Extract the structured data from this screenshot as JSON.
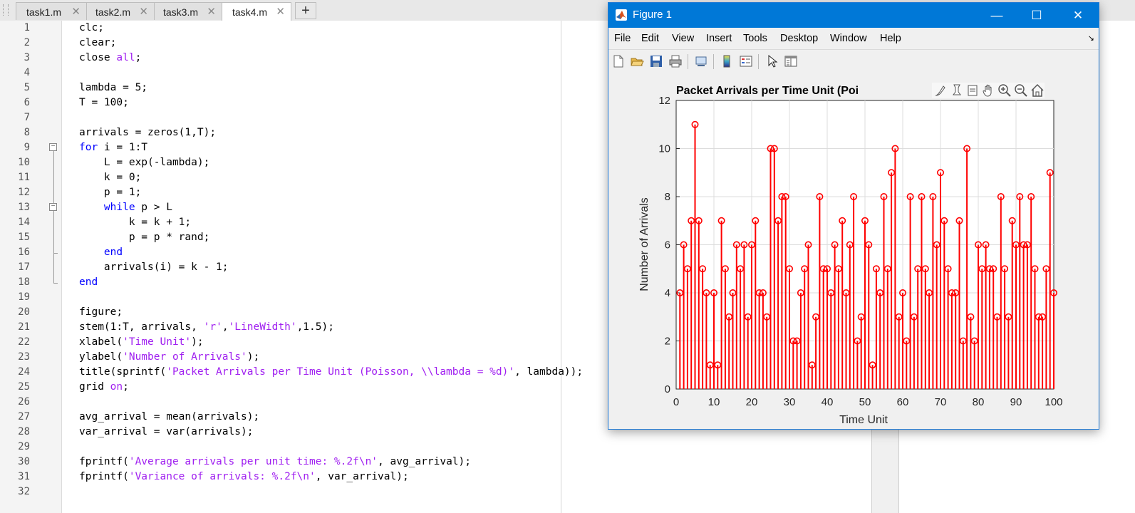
{
  "editor": {
    "tabs": [
      {
        "label": "task1.m",
        "active": false
      },
      {
        "label": "task2.m",
        "active": false
      },
      {
        "label": "task3.m",
        "active": false
      },
      {
        "label": "task4.m",
        "active": true
      }
    ],
    "new_tab": "+",
    "lines": [
      [
        [
          "t",
          "clc;"
        ]
      ],
      [
        [
          "t",
          "clear;"
        ]
      ],
      [
        [
          "t",
          "close "
        ],
        [
          "s",
          "all"
        ],
        [
          "t",
          ";"
        ]
      ],
      [
        [
          "t",
          ""
        ]
      ],
      [
        [
          "t",
          "lambda = 5;"
        ]
      ],
      [
        [
          "t",
          "T = 100;"
        ]
      ],
      [
        [
          "t",
          ""
        ]
      ],
      [
        [
          "t",
          "arrivals = zeros(1,T);"
        ]
      ],
      [
        [
          "k",
          "for"
        ],
        [
          "t",
          " i = 1:T"
        ]
      ],
      [
        [
          "t",
          "    L = exp(-lambda);"
        ]
      ],
      [
        [
          "t",
          "    k = 0;"
        ]
      ],
      [
        [
          "t",
          "    p = 1;"
        ]
      ],
      [
        [
          "t",
          "    "
        ],
        [
          "k",
          "while"
        ],
        [
          "t",
          " p > L"
        ]
      ],
      [
        [
          "t",
          "        k = k + 1;"
        ]
      ],
      [
        [
          "t",
          "        p = p * rand;"
        ]
      ],
      [
        [
          "t",
          "    "
        ],
        [
          "k",
          "end"
        ]
      ],
      [
        [
          "t",
          "    arrivals(i) = k - 1;"
        ]
      ],
      [
        [
          "k",
          "end"
        ]
      ],
      [
        [
          "t",
          ""
        ]
      ],
      [
        [
          "t",
          "figure;"
        ]
      ],
      [
        [
          "t",
          "stem(1:T, arrivals, "
        ],
        [
          "s",
          "'r'"
        ],
        [
          "t",
          ","
        ],
        [
          "s",
          "'LineWidth'"
        ],
        [
          "t",
          ",1.5);"
        ]
      ],
      [
        [
          "t",
          "xlabel("
        ],
        [
          "s",
          "'Time Unit'"
        ],
        [
          "t",
          ");"
        ]
      ],
      [
        [
          "t",
          "ylabel("
        ],
        [
          "s",
          "'Number of Arrivals'"
        ],
        [
          "t",
          ");"
        ]
      ],
      [
        [
          "t",
          "title(sprintf("
        ],
        [
          "s",
          "'Packet Arrivals per Time Unit (Poisson, \\\\lambda = %d)'"
        ],
        [
          "t",
          ", lambda));"
        ]
      ],
      [
        [
          "t",
          "grid "
        ],
        [
          "s",
          "on"
        ],
        [
          "t",
          ";"
        ]
      ],
      [
        [
          "t",
          ""
        ]
      ],
      [
        [
          "t",
          "avg_arrival = mean(arrivals);"
        ]
      ],
      [
        [
          "t",
          "var_arrival = var(arrivals);"
        ]
      ],
      [
        [
          "t",
          ""
        ]
      ],
      [
        [
          "t",
          "fprintf("
        ],
        [
          "s",
          "'Average arrivals per unit time: %.2f\\n'"
        ],
        [
          "t",
          ", avg_arrival);"
        ]
      ],
      [
        [
          "t",
          "fprintf("
        ],
        [
          "s",
          "'Variance of arrivals: %.2f\\n'"
        ],
        [
          "t",
          ", var_arrival);"
        ]
      ],
      [
        [
          "t",
          ""
        ]
      ]
    ]
  },
  "figure_window": {
    "title": "Figure 1",
    "controls": {
      "minimize": "—",
      "maximize": "☐",
      "close": "✕"
    },
    "menu": [
      "File",
      "Edit",
      "View",
      "Insert",
      "Tools",
      "Desktop",
      "Window",
      "Help"
    ],
    "toolbar_icons": [
      "new-figure-icon",
      "open-file-icon",
      "save-icon",
      "print-icon",
      "link-plot-icon",
      "colorbar-icon",
      "legend-icon",
      "pointer-icon",
      "property-inspector-icon"
    ],
    "axes_toolbar_icons": [
      "brush-icon",
      "data-tips-icon",
      "rotate-icon",
      "pan-icon",
      "zoom-in-icon",
      "zoom-out-icon",
      "home-icon"
    ],
    "stem_color": "#ff0000"
  },
  "chart_data": {
    "type": "stem",
    "title": "Packet Arrivals per Time Unit (Poi",
    "xlabel": "Time Unit",
    "ylabel": "Number of Arrivals",
    "xlim": [
      0,
      100
    ],
    "ylim": [
      0,
      12
    ],
    "xticks": [
      0,
      10,
      20,
      30,
      40,
      50,
      60,
      70,
      80,
      90,
      100
    ],
    "yticks": [
      0,
      2,
      4,
      6,
      8,
      10,
      12
    ],
    "grid": true,
    "x": [
      1,
      2,
      3,
      4,
      5,
      6,
      7,
      8,
      9,
      10,
      11,
      12,
      13,
      14,
      15,
      16,
      17,
      18,
      19,
      20,
      21,
      22,
      23,
      24,
      25,
      26,
      27,
      28,
      29,
      30,
      31,
      32,
      33,
      34,
      35,
      36,
      37,
      38,
      39,
      40,
      41,
      42,
      43,
      44,
      45,
      46,
      47,
      48,
      49,
      50,
      51,
      52,
      53,
      54,
      55,
      56,
      57,
      58,
      59,
      60,
      61,
      62,
      63,
      64,
      65,
      66,
      67,
      68,
      69,
      70,
      71,
      72,
      73,
      74,
      75,
      76,
      77,
      78,
      79,
      80,
      81,
      82,
      83,
      84,
      85,
      86,
      87,
      88,
      89,
      90,
      91,
      92,
      93,
      94,
      95,
      96,
      97,
      98,
      99,
      100
    ],
    "values": [
      4,
      6,
      5,
      7,
      11,
      7,
      5,
      4,
      1,
      4,
      1,
      7,
      5,
      3,
      4,
      6,
      5,
      6,
      3,
      6,
      7,
      4,
      4,
      3,
      10,
      10,
      7,
      8,
      8,
      5,
      2,
      2,
      4,
      5,
      6,
      1,
      3,
      8,
      5,
      5,
      4,
      6,
      5,
      7,
      4,
      6,
      8,
      2,
      3,
      7,
      6,
      1,
      5,
      4,
      8,
      5,
      9,
      10,
      3,
      4,
      2,
      8,
      3,
      5,
      8,
      5,
      4,
      8,
      6,
      9,
      7,
      5,
      4,
      4,
      7,
      2,
      10,
      3,
      2,
      6,
      5,
      6,
      5,
      5,
      3,
      8,
      5,
      3,
      7,
      6,
      8,
      6,
      6,
      8,
      5,
      3,
      3,
      5,
      9,
      4
    ]
  }
}
